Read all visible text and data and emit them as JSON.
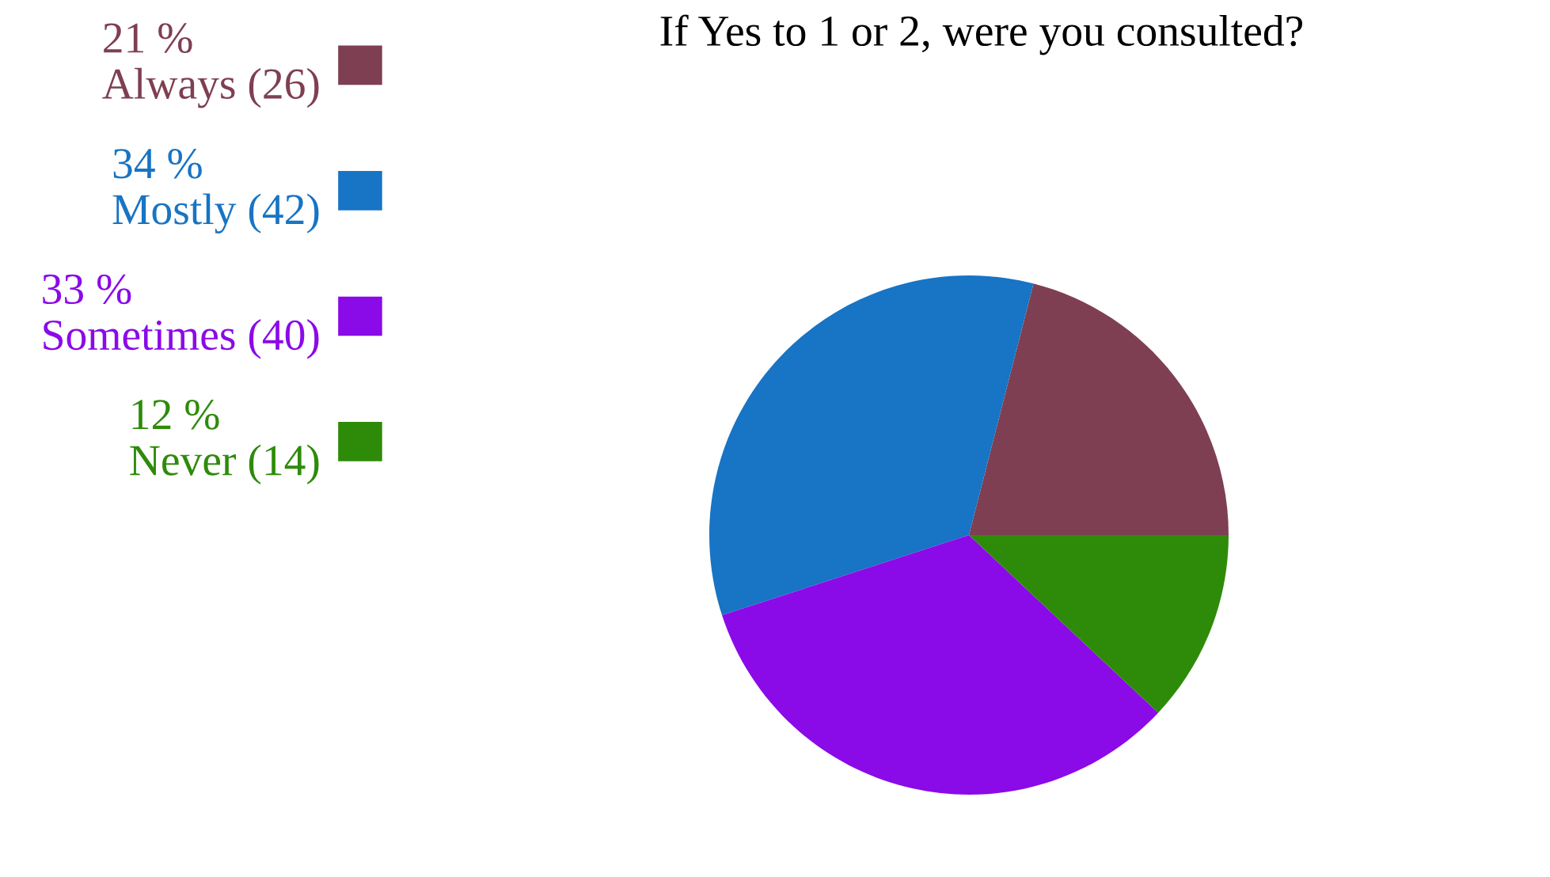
{
  "chart_data": {
    "type": "pie",
    "title": "If Yes to 1 or 2, were you consulted?",
    "categories": [
      "Always (26)",
      "Mostly (42)",
      "Sometimes (40)",
      "Never (14)"
    ],
    "values": [
      21,
      34,
      33,
      12
    ],
    "value_labels": [
      "21 %",
      "34 %",
      "33 %",
      "12 %"
    ],
    "colors": [
      "#7f3f52",
      "#1874c4",
      "#8b0ae8",
      "#2e8b0a"
    ],
    "legend": "left"
  }
}
